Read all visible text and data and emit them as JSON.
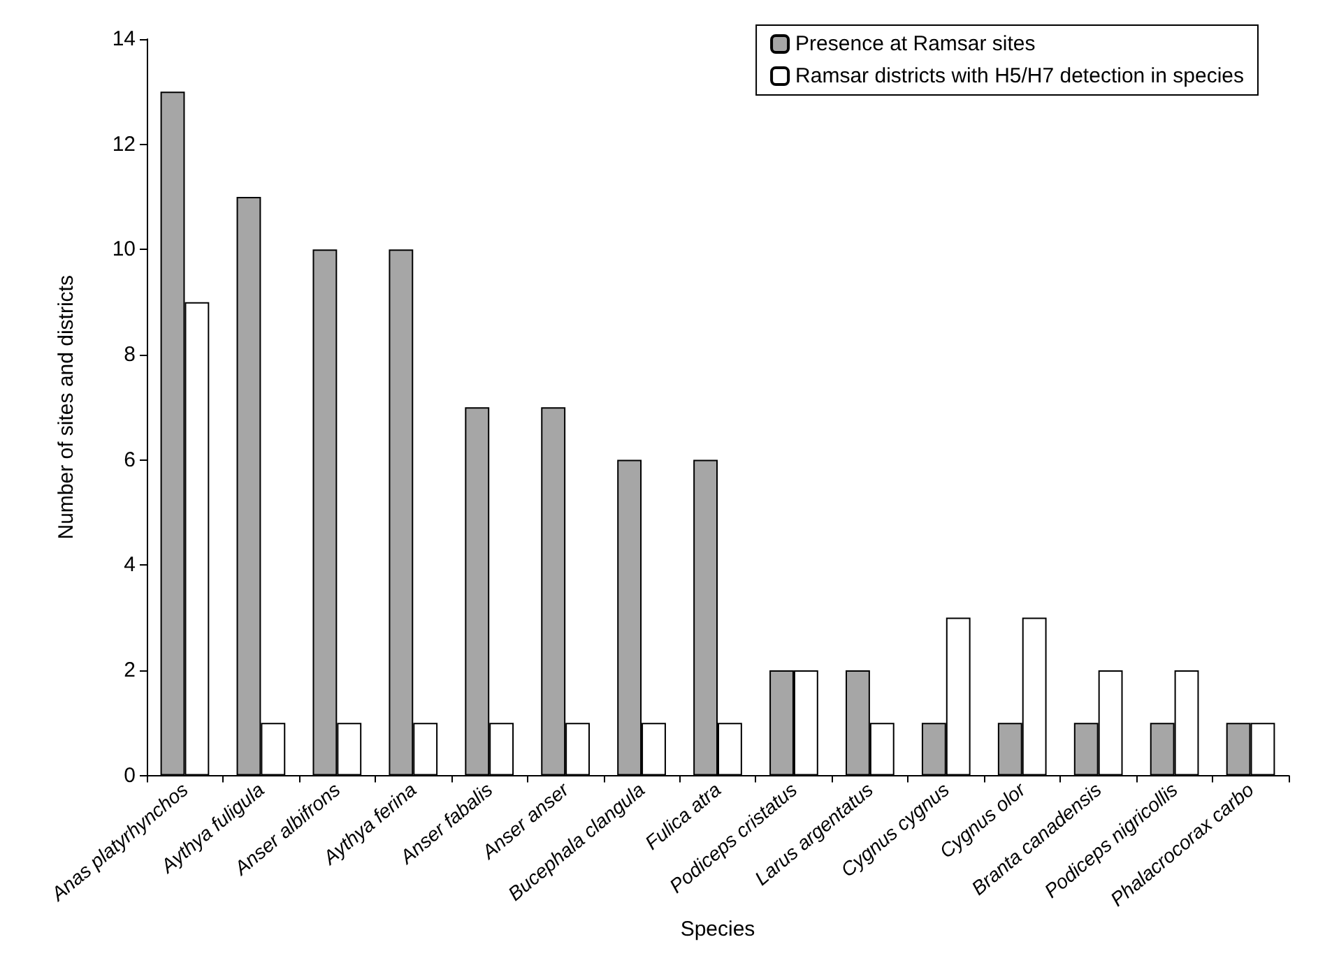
{
  "chart_data": {
    "type": "bar",
    "xlabel": "Species",
    "ylabel": "Number of sites and districts",
    "categories": [
      "Anas platyrhynchos",
      "Aythya fuligula",
      "Anser albifrons",
      "Aythya ferina",
      "Anser fabalis",
      "Anser anser",
      "Bucephala clangula",
      "Fulica atra",
      "Podiceps cristatus",
      "Larus argentatus",
      "Cygnus cygnus",
      "Cygnus olor",
      "Branta canadensis",
      "Podiceps nigricollis",
      "Phalacrocorax carbo"
    ],
    "series": [
      {
        "name": "Presence at Ramsar sites",
        "color": "#a6a6a6",
        "values": [
          13,
          11,
          10,
          10,
          7,
          7,
          6,
          6,
          2,
          2,
          1,
          1,
          1,
          1,
          1
        ]
      },
      {
        "name": "Ramsar districts with H5/H7 detection in species",
        "color": "#ffffff",
        "values": [
          9,
          1,
          1,
          1,
          1,
          1,
          1,
          1,
          2,
          1,
          3,
          3,
          2,
          2,
          1
        ]
      }
    ],
    "ylim": [
      0,
      14
    ],
    "yticks": [
      0,
      2,
      4,
      6,
      8,
      10,
      12,
      14
    ],
    "grid": false,
    "legend": "top right"
  }
}
